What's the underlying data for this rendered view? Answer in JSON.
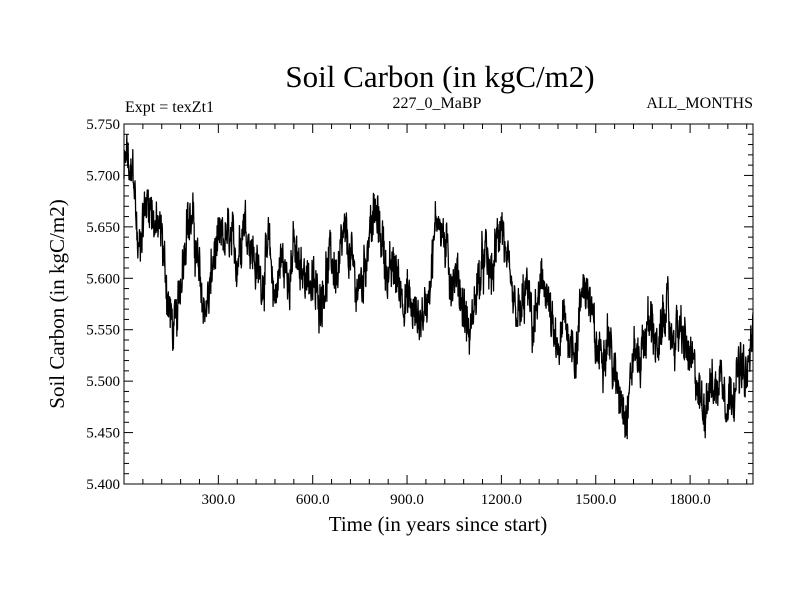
{
  "chart_data": {
    "type": "line",
    "title": "Soil Carbon (in kgC/m2)",
    "subtitle_left": "Expt = texZt1",
    "subtitle_center": "227_0_MaBP",
    "subtitle_right": "ALL_MONTHS",
    "xlabel": "Time (in years since start)",
    "ylabel": "Soil Carbon (in kgC/m2)",
    "xlim": [
      0,
      2000
    ],
    "ylim": [
      5.4,
      5.75
    ],
    "xticks": [
      300,
      600,
      900,
      1200,
      1500,
      1800
    ],
    "xtick_labels": [
      "300.0",
      "600.0",
      "900.0",
      "1200.0",
      "1500.0",
      "1800.0"
    ],
    "yticks": [
      5.4,
      5.45,
      5.5,
      5.55,
      5.6,
      5.65,
      5.7,
      5.75
    ],
    "ytick_labels": [
      "5.400",
      "5.450",
      "5.500",
      "5.550",
      "5.600",
      "5.650",
      "5.700",
      "5.750"
    ],
    "grid": false,
    "series": [
      {
        "name": "Soil Carbon",
        "color": "#000000",
        "anchors_x": [
          0,
          10,
          20,
          30,
          45,
          60,
          80,
          100,
          120,
          140,
          155,
          170,
          180,
          200,
          220,
          240,
          255,
          270,
          285,
          300,
          330,
          360,
          380,
          400,
          420,
          440,
          460,
          480,
          500,
          520,
          540,
          560,
          580,
          600,
          620,
          640,
          660,
          680,
          700,
          720,
          740,
          760,
          780,
          800,
          820,
          840,
          860,
          880,
          900,
          930,
          960,
          980,
          1000,
          1020,
          1040,
          1060,
          1080,
          1100,
          1120,
          1150,
          1170,
          1200,
          1220,
          1240,
          1260,
          1280,
          1300,
          1320,
          1340,
          1360,
          1380,
          1400,
          1420,
          1440,
          1460,
          1480,
          1500,
          1520,
          1540,
          1560,
          1580,
          1600,
          1620,
          1640,
          1660,
          1680,
          1700,
          1720,
          1740,
          1760,
          1780,
          1800,
          1820,
          1840,
          1860,
          1880,
          1900,
          1920,
          1940,
          1960,
          1980,
          2000
        ],
        "anchors_y": [
          5.7,
          5.72,
          5.69,
          5.71,
          5.62,
          5.66,
          5.68,
          5.65,
          5.64,
          5.58,
          5.55,
          5.56,
          5.6,
          5.66,
          5.65,
          5.6,
          5.57,
          5.58,
          5.62,
          5.63,
          5.64,
          5.62,
          5.66,
          5.64,
          5.61,
          5.6,
          5.63,
          5.58,
          5.62,
          5.6,
          5.63,
          5.6,
          5.61,
          5.59,
          5.58,
          5.6,
          5.62,
          5.6,
          5.64,
          5.62,
          5.59,
          5.6,
          5.65,
          5.66,
          5.64,
          5.6,
          5.61,
          5.59,
          5.58,
          5.56,
          5.57,
          5.62,
          5.67,
          5.63,
          5.6,
          5.6,
          5.57,
          5.54,
          5.59,
          5.62,
          5.6,
          5.66,
          5.6,
          5.57,
          5.56,
          5.59,
          5.55,
          5.58,
          5.6,
          5.55,
          5.52,
          5.56,
          5.54,
          5.53,
          5.6,
          5.58,
          5.53,
          5.53,
          5.55,
          5.5,
          5.49,
          5.47,
          5.53,
          5.52,
          5.55,
          5.56,
          5.52,
          5.58,
          5.54,
          5.55,
          5.54,
          5.52,
          5.5,
          5.47,
          5.5,
          5.49,
          5.51,
          5.48,
          5.5,
          5.51,
          5.5,
          5.55
        ]
      }
    ]
  }
}
